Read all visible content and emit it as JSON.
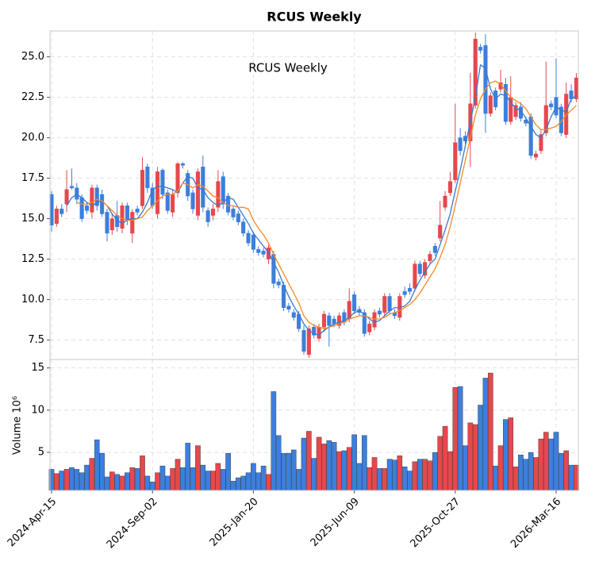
{
  "chart_data": {
    "type": "candlestick",
    "title": "RCUS  Weekly",
    "annotation": "RCUS  Weekly",
    "categories": [
      "2024-Apr-15",
      null,
      null,
      null,
      null,
      null,
      null,
      null,
      null,
      null,
      null,
      null,
      null,
      null,
      null,
      null,
      null,
      null,
      null,
      null,
      "2024-Sep-02",
      null,
      null,
      null,
      null,
      null,
      null,
      null,
      null,
      null,
      null,
      null,
      null,
      null,
      null,
      null,
      null,
      null,
      null,
      null,
      "2025-Jan-20",
      null,
      null,
      null,
      null,
      null,
      null,
      null,
      null,
      null,
      null,
      null,
      null,
      null,
      null,
      null,
      null,
      null,
      null,
      null,
      "2025-Jun-09",
      null,
      null,
      null,
      null,
      null,
      null,
      null,
      null,
      null,
      null,
      null,
      null,
      null,
      null,
      null,
      null,
      null,
      null,
      null,
      "2025-Oct-27",
      null,
      null,
      null,
      null,
      null,
      null,
      null,
      null,
      null,
      null,
      null,
      null,
      null,
      null,
      null,
      null,
      null,
      null,
      null,
      "2026-Mar-16",
      null,
      null,
      null,
      null
    ],
    "open": [
      14.6,
      15.6,
      15.3,
      16.8,
      16.9,
      16.2,
      15.0,
      15.5,
      16.9,
      15.8,
      15.3,
      14.1,
      15.0,
      14.5,
      15.8,
      14.9,
      15.4,
      15.4,
      18.0,
      16.9,
      15.8,
      17.9,
      16.5,
      15.5,
      16.5,
      18.4,
      18.3,
      16.4,
      15.6,
      17.9,
      15.7,
      14.8,
      15.6,
      17.3,
      15.9,
      15.4,
      15.1,
      14.8,
      14.1,
      13.5,
      13.1,
      12.9,
      12.8,
      13.2,
      11.0,
      10.9,
      9.5,
      9.4,
      8.9,
      8.2,
      6.8,
      8.2,
      7.8,
      8.3,
      9.1,
      8.4,
      8.5,
      9.0,
      8.6,
      9.9,
      9.3,
      9.2,
      7.9,
      8.5,
      9.2,
      9.1,
      10.2,
      9.3,
      9.0,
      10.2,
      10.3,
      10.5,
      12.2,
      11.6,
      12.3,
      12.8,
      12.9,
      14.6,
      16.4,
      17.3,
      19.7,
      19.2,
      19.8,
      22.1,
      26.1,
      25.4,
      21.5,
      22.6,
      21.9,
      23.4,
      21.0,
      22.5,
      22.0,
      21.2,
      20.9,
      18.9,
      19.0,
      20.2,
      22.0,
      21.9,
      21.4,
      20.3,
      22.7,
      22.4,
      23.7
    ],
    "high": [
      16.7,
      15.8,
      15.9,
      18.0,
      18.1,
      17.2,
      16.5,
      16.0,
      17.1,
      17.1,
      16.8,
      15.6,
      15.3,
      16.1,
      16.0,
      16.0,
      15.6,
      15.8,
      18.8,
      18.4,
      17.2,
      18.2,
      18.1,
      16.8,
      16.8,
      18.5,
      18.5,
      18.0,
      16.8,
      18.1,
      18.9,
      15.7,
      15.9,
      18.0,
      17.9,
      16.6,
      15.8,
      15.5,
      15.0,
      14.3,
      14.2,
      13.3,
      13.2,
      13.4,
      13.0,
      11.3,
      11.1,
      9.8,
      9.4,
      9.3,
      8.4,
      8.4,
      8.5,
      8.5,
      9.3,
      9.2,
      9.0,
      9.2,
      9.4,
      10.7,
      10.5,
      9.6,
      9.4,
      8.7,
      9.4,
      9.5,
      10.4,
      10.4,
      9.4,
      10.4,
      10.8,
      11.0,
      12.4,
      12.4,
      12.5,
      13.0,
      13.5,
      16.1,
      16.7,
      17.9,
      22.1,
      20.6,
      20.4,
      24.0,
      26.5,
      25.8,
      26.4,
      22.8,
      23.1,
      24.2,
      23.7,
      23.8,
      22.2,
      22.2,
      21.3,
      21.5,
      19.2,
      20.5,
      24.7,
      22.3,
      24.9,
      22.1,
      23.4,
      23.3,
      24.0
    ],
    "low": [
      14.2,
      14.5,
      15.1,
      15.4,
      16.8,
      15.9,
      14.8,
      15.3,
      15.0,
      15.5,
      15.1,
      13.6,
      14.0,
      14.2,
      14.1,
      14.6,
      13.5,
      15.2,
      15.6,
      16.6,
      15.6,
      15.0,
      16.2,
      15.3,
      15.1,
      16.3,
      18.1,
      16.1,
      15.3,
      14.9,
      15.4,
      14.5,
      14.9,
      15.4,
      15.6,
      15.2,
      14.9,
      14.6,
      13.9,
      13.3,
      12.9,
      12.7,
      12.6,
      12.2,
      10.7,
      10.7,
      9.3,
      9.2,
      8.7,
      8.0,
      6.6,
      6.4,
      7.6,
      7.4,
      8.0,
      7.1,
      8.3,
      8.2,
      8.4,
      8.6,
      9.1,
      9.0,
      7.7,
      7.8,
      8.1,
      8.9,
      9.0,
      9.1,
      8.8,
      8.7,
      10.1,
      10.3,
      10.5,
      11.4,
      11.3,
      12.2,
      12.7,
      13.6,
      15.5,
      16.4,
      17.2,
      18.9,
      19.6,
      18.2,
      21.8,
      25.2,
      20.3,
      21.3,
      21.7,
      22.8,
      20.8,
      20.8,
      21.1,
      21.0,
      20.7,
      18.7,
      18.6,
      19.0,
      20.1,
      21.7,
      21.2,
      20.1,
      20.0,
      22.2,
      22.2
    ],
    "close": [
      16.5,
      14.7,
      15.6,
      15.9,
      17.0,
      16.9,
      16.3,
      15.8,
      15.4,
      16.9,
      16.5,
      15.4,
      14.3,
      15.2,
      14.4,
      15.8,
      14.1,
      15.6,
      15.8,
      18.2,
      16.9,
      15.3,
      18.0,
      16.6,
      15.4,
      16.6,
      18.4,
      17.8,
      16.6,
      15.2,
      18.2,
      15.5,
      15.2,
      15.7,
      17.6,
      16.4,
      15.6,
      15.3,
      14.8,
      14.1,
      14.0,
      13.1,
      13.0,
      12.5,
      12.8,
      11.1,
      10.9,
      9.6,
      9.2,
      9.1,
      8.1,
      6.6,
      8.3,
      7.6,
      8.3,
      9.0,
      8.8,
      8.4,
      9.2,
      8.8,
      10.3,
      9.4,
      9.2,
      8.0,
      8.3,
      9.3,
      9.2,
      10.2,
      9.2,
      8.9,
      10.5,
      10.7,
      10.7,
      12.2,
      11.5,
      12.4,
      13.3,
      13.8,
      15.7,
      16.6,
      17.4,
      20.0,
      20.1,
      19.8,
      22.0,
      25.6,
      25.7,
      21.5,
      22.9,
      23.0,
      23.3,
      21.0,
      21.3,
      21.9,
      21.1,
      21.3,
      18.8,
      19.2,
      20.3,
      22.1,
      22.5,
      21.9,
      20.2,
      22.9,
      22.4
    ],
    "up_color": "#3c7fdc",
    "down_color": "#e5484d",
    "lines": [
      {
        "color": "#3a78d0",
        "values": [
          null,
          null,
          null,
          15.8,
          16.3,
          16.5,
          16.3,
          16.0,
          15.8,
          16.0,
          16.1,
          15.8,
          15.3,
          14.9,
          14.7,
          14.9,
          15.0,
          15.0,
          15.4,
          16.0,
          16.8,
          17.0,
          17.0,
          16.9,
          16.8,
          16.6,
          17.2,
          17.6,
          17.5,
          16.9,
          16.8,
          16.3,
          16.0,
          15.8,
          16.0,
          16.3,
          16.2,
          15.7,
          15.2,
          14.7,
          14.1,
          13.7,
          13.3,
          12.9,
          12.3,
          11.7,
          10.9,
          10.2,
          9.6,
          9.1,
          8.5,
          8.1,
          7.9,
          7.8,
          8.1,
          8.3,
          8.5,
          8.6,
          8.7,
          8.9,
          9.2,
          9.3,
          9.1,
          8.8,
          8.6,
          8.7,
          9.0,
          9.3,
          9.5,
          9.5,
          9.6,
          9.9,
          10.6,
          11.2,
          11.7,
          12.2,
          12.5,
          13.4,
          14.3,
          15.3,
          16.7,
          18.0,
          19.5,
          21.0,
          22.5,
          24.5,
          24.3,
          23.0,
          22.4,
          22.7,
          22.6,
          22.2,
          21.8,
          21.7,
          21.2,
          20.7,
          20.2,
          20.0,
          20.5,
          21.3,
          21.9,
          21.7,
          21.6,
          22.4,
          22.6
        ]
      },
      {
        "color": "#f28a24",
        "values": [
          null,
          null,
          null,
          null,
          null,
          16.0,
          15.9,
          15.9,
          16.0,
          16.2,
          16.1,
          15.8,
          15.5,
          15.2,
          15.0,
          14.9,
          14.9,
          15.0,
          15.1,
          15.5,
          15.8,
          16.1,
          16.4,
          16.5,
          16.5,
          16.7,
          17.2,
          17.1,
          16.9,
          17.1,
          17.0,
          16.7,
          16.4,
          16.3,
          16.0,
          15.8,
          15.8,
          15.7,
          15.7,
          15.6,
          14.9,
          14.4,
          14.0,
          13.5,
          12.8,
          12.2,
          11.6,
          11.0,
          10.4,
          9.8,
          9.0,
          8.6,
          8.4,
          8.3,
          8.2,
          8.3,
          8.4,
          8.5,
          8.6,
          8.8,
          8.9,
          9.0,
          9.0,
          8.9,
          8.8,
          8.8,
          8.9,
          9.1,
          9.2,
          9.3,
          9.5,
          9.7,
          10.0,
          10.4,
          10.9,
          11.4,
          11.9,
          12.6,
          13.4,
          14.5,
          15.8,
          17.2,
          18.6,
          20.0,
          21.4,
          22.4,
          23.0,
          23.4,
          23.5,
          23.3,
          22.9,
          22.5,
          22.3,
          22.1,
          21.8,
          21.3,
          20.8,
          20.5,
          20.5,
          20.6,
          20.7,
          21.0,
          21.4,
          21.7,
          22.0
        ]
      }
    ],
    "ylim": [
      6.3,
      26.6
    ],
    "yticks": [
      7.5,
      {
        "value": 10,
        "label": "10.0"
      },
      12.5,
      {
        "value": 15,
        "label": "15.0"
      },
      17.5,
      {
        "value": 20,
        "label": "20.0"
      },
      22.5,
      {
        "value": 25,
        "label": "25.0"
      }
    ],
    "grid": true,
    "volume": {
      "ylabel": "Volume  10⁶",
      "values": [
        3.0,
        2.5,
        2.8,
        3.0,
        3.2,
        3.0,
        2.6,
        3.5,
        4.3,
        6.5,
        4.9,
        2.1,
        2.7,
        2.4,
        2.2,
        2.6,
        3.2,
        3.1,
        4.6,
        2.2,
        1.5,
        2.6,
        3.4,
        2.2,
        3.1,
        4.2,
        3.2,
        6.1,
        3.2,
        5.8,
        3.5,
        2.8,
        2.8,
        3.7,
        3.0,
        4.9,
        1.6,
        2.0,
        2.2,
        2.6,
        3.7,
        2.6,
        3.4,
        2.4,
        12.2,
        7.0,
        4.9,
        4.9,
        5.3,
        3.0,
        6.7,
        7.5,
        4.3,
        6.8,
        6.0,
        6.4,
        6.2,
        5.1,
        5.2,
        5.6,
        7.1,
        3.7,
        7.0,
        3.2,
        4.4,
        3.1,
        3.1,
        4.2,
        4.1,
        4.6,
        3.3,
        2.8,
        3.9,
        4.2,
        4.2,
        4.0,
        5.0,
        6.9,
        8.1,
        5.1,
        12.7,
        12.8,
        5.8,
        8.5,
        8.3,
        10.6,
        13.8,
        14.4,
        3.4,
        5.8,
        8.9,
        9.1,
        3.3,
        4.7,
        4.2,
        5.0,
        4.4,
        6.6,
        7.4,
        6.6,
        7.4,
        4.9,
        5.2,
        3.5,
        3.5
      ],
      "ylim": [
        0.5,
        16.0
      ],
      "yticks": [
        5,
        10,
        15
      ]
    }
  }
}
